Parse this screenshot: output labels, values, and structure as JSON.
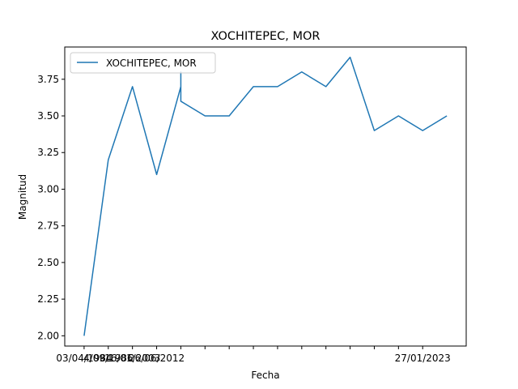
{
  "chart_data": {
    "type": "line",
    "title": "XOCHITEPEC, MOR",
    "xlabel": "Fecha",
    "ylabel": "Magnitud",
    "x": [
      "03/04/1984",
      "4/09/1986",
      "",
      "16/01/2003",
      "26/06/2012",
      "",
      "",
      "",
      "",
      "",
      "",
      "",
      "",
      "",
      "",
      "",
      ""
    ],
    "xtick_labels": [
      "03/04/1984",
      "4/09/1986",
      "16/01/2003",
      "26/06/2012",
      "",
      "",
      "",
      "",
      "",
      "",
      "",
      "",
      "",
      "",
      "27/01/2023"
    ],
    "yticks": [
      "2.00",
      "2.25",
      "2.50",
      "2.75",
      "3.00",
      "3.25",
      "3.50",
      "3.75"
    ],
    "ylim": [
      1.93,
      3.97
    ],
    "grid": false,
    "legend_position": "top-left",
    "colors": {
      "series": "#1f77b4",
      "axes": "#000000",
      "background": "#ffffff"
    },
    "series": [
      {
        "name": "XOCHITEPEC, MOR",
        "points": [
          [
            0,
            2.0
          ],
          [
            1,
            3.2
          ],
          [
            2,
            3.7
          ],
          [
            3,
            3.1
          ],
          [
            4,
            3.7
          ],
          [
            4,
            3.8
          ],
          [
            4,
            3.6
          ],
          [
            5,
            3.5
          ],
          [
            6,
            3.5
          ],
          [
            7,
            3.7
          ],
          [
            8,
            3.7
          ],
          [
            9,
            3.8
          ],
          [
            10,
            3.7
          ],
          [
            11,
            3.9
          ],
          [
            12,
            3.4
          ],
          [
            13,
            3.5
          ],
          [
            14,
            3.4
          ],
          [
            15,
            3.5
          ]
        ]
      }
    ]
  }
}
